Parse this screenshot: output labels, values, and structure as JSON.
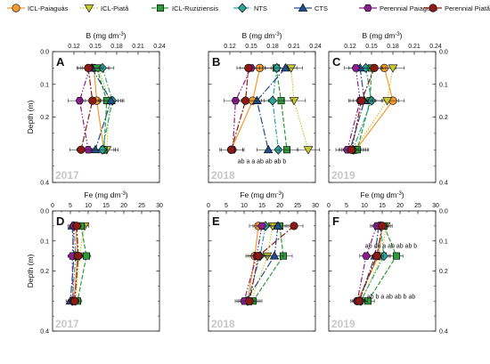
{
  "legend": [
    {
      "name": "ICL-Paiaguás",
      "color": "#f39a2b",
      "marker": "circle",
      "dash": ""
    },
    {
      "name": "ICL-Piatã",
      "color": "#c8c830",
      "marker": "triangle-down",
      "dash": "1.5,1.5"
    },
    {
      "name": "ICL-Ruziziensis",
      "color": "#2e9a3a",
      "marker": "square",
      "dash": "5,2"
    },
    {
      "name": "NTS",
      "color": "#2aa59a",
      "marker": "diamond",
      "dash": "6,2,1.5,2"
    },
    {
      "name": "CTS",
      "color": "#1f4e8c",
      "marker": "triangle-up",
      "dash": "8,2,1.5,2"
    },
    {
      "name": "Perennial Paiaguás",
      "color": "#8b1e8f",
      "marker": "hexagon",
      "dash": "6,2,1.5,2,1.5,2"
    },
    {
      "name": "Perennial Piatã",
      "color": "#8b1a14",
      "marker": "circle",
      "dash": "7,2,2,2"
    }
  ],
  "chart_data": [
    {
      "panel": "A",
      "year": "2017",
      "type": "scatter",
      "xlabel": "B (mg dm⁻³)",
      "xlabel_base": "B (mg dm",
      "xlabel_sup": "-3",
      "xlabel_end": ")",
      "ylabel": "Depth (m)",
      "xlim": [
        0.09,
        0.24
      ],
      "xticks": [
        "0.12",
        "0.15",
        "0.18",
        "0.21",
        "0.24"
      ],
      "ylim": [
        0,
        0.4
      ],
      "yticks": [
        "0.0",
        "0.1",
        "0.2",
        "0.4"
      ],
      "y": [
        0.05,
        0.15,
        0.3
      ],
      "series": [
        {
          "name": "ICL-Paiaguás",
          "x": [
            0.148,
            0.152,
            0.162
          ],
          "err": 0.016
        },
        {
          "name": "ICL-Piatã",
          "x": [
            0.154,
            0.17,
            0.166
          ],
          "err": 0.016
        },
        {
          "name": "ICL-Ruziziensis",
          "x": [
            0.152,
            0.166,
            0.162
          ],
          "err": 0.016
        },
        {
          "name": "NTS",
          "x": [
            0.16,
            0.174,
            0.16
          ],
          "err": 0.016
        },
        {
          "name": "CTS",
          "x": [
            0.145,
            0.172,
            0.15
          ],
          "err": 0.016
        },
        {
          "name": "Perennial Paiaguás",
          "x": [
            0.142,
            0.128,
            0.14
          ],
          "err": 0.016
        },
        {
          "name": "Perennial Piatã",
          "x": [
            0.14,
            0.146,
            0.13
          ],
          "err": 0.016
        }
      ],
      "annotations": []
    },
    {
      "panel": "B",
      "year": "2018",
      "type": "scatter",
      "xlabel": "B (mg dm⁻³)",
      "xlabel_base": "B (mg dm",
      "xlabel_sup": "-3",
      "xlabel_end": ")",
      "ylabel": "",
      "xlim": [
        0.09,
        0.24
      ],
      "xticks": [
        "0.12",
        "0.15",
        "0.18",
        "0.21",
        "0.24"
      ],
      "ylim": [
        0,
        0.4
      ],
      "yticks": [
        "0.0",
        "0.1",
        "0.2",
        "0.4"
      ],
      "y": [
        0.05,
        0.15,
        0.3
      ],
      "series": [
        {
          "name": "ICL-Paiaguás",
          "x": [
            0.162,
            0.152,
            0.122
          ],
          "err": 0.016
        },
        {
          "name": "ICL-Piatã",
          "x": [
            0.206,
            0.21,
            0.23
          ],
          "err": 0.016
        },
        {
          "name": "ICL-Ruziziensis",
          "x": [
            0.185,
            0.192,
            0.2
          ],
          "err": 0.016
        },
        {
          "name": "NTS",
          "x": [
            0.186,
            0.18,
            0.188
          ],
          "err": 0.016
        },
        {
          "name": "CTS",
          "x": [
            0.198,
            0.158,
            0.174
          ],
          "err": 0.016
        },
        {
          "name": "Perennial Paiaguás",
          "x": [
            0.15,
            0.128,
            0.124
          ],
          "err": 0.016
        },
        {
          "name": "Perennial Piatã",
          "x": [
            0.146,
            0.142,
            0.122
          ],
          "err": 0.016
        }
      ],
      "annotations": [
        {
          "text": "ab  a   a  ab ab ab b",
          "x": 0.165,
          "y": 0.335
        }
      ]
    },
    {
      "panel": "C",
      "year": "2019",
      "type": "scatter",
      "xlabel": "B (mg dm⁻³)",
      "xlabel_base": "B (mg dm",
      "xlabel_sup": "-3",
      "xlabel_end": ")",
      "ylabel": "",
      "xlim": [
        0.09,
        0.24
      ],
      "xticks": [
        "0.12",
        "0.15",
        "0.18",
        "0.21",
        "0.24"
      ],
      "ylim": [
        0,
        0.4
      ],
      "yticks": [
        "0.0",
        "0.1",
        "0.2",
        "0.4"
      ],
      "y": [
        0.05,
        0.15,
        0.3
      ],
      "series": [
        {
          "name": "ICL-Paiaguás",
          "x": [
            0.168,
            0.18,
            0.128
          ],
          "err": 0.016
        },
        {
          "name": "ICL-Piatã",
          "x": [
            0.18,
            0.172,
            0.126
          ],
          "err": 0.016
        },
        {
          "name": "ICL-Ruziziensis",
          "x": [
            0.15,
            0.148,
            0.13
          ],
          "err": 0.016
        },
        {
          "name": "NTS",
          "x": [
            0.142,
            0.15,
            0.124
          ],
          "err": 0.016
        },
        {
          "name": "CTS",
          "x": [
            0.134,
            0.14,
            0.12
          ],
          "err": 0.016
        },
        {
          "name": "Perennial Paiaguás",
          "x": [
            0.128,
            0.134,
            0.116
          ],
          "err": 0.016
        },
        {
          "name": "Perennial Piatã",
          "x": [
            0.154,
            0.136,
            0.122
          ],
          "err": 0.016
        }
      ],
      "annotations": []
    },
    {
      "panel": "D",
      "year": "2017",
      "type": "scatter",
      "xlabel": "Fe (mg dm⁻³)",
      "xlabel_base": "Fe (mg dm",
      "xlabel_sup": "-3",
      "xlabel_end": ")",
      "ylabel": "Depth (m)",
      "xlim": [
        0,
        30
      ],
      "xticks": [
        "0",
        "5",
        "10",
        "15",
        "20",
        "25",
        "30"
      ],
      "ylim": [
        0,
        0.4
      ],
      "yticks": [
        "0.0",
        "0.1",
        "0.2",
        "0.4"
      ],
      "y": [
        0.05,
        0.15,
        0.3
      ],
      "series": [
        {
          "name": "ICL-Paiaguás",
          "x": [
            6.5,
            7.0,
            6.0
          ],
          "err": 1.2
        },
        {
          "name": "ICL-Piatã",
          "x": [
            9.0,
            7.5,
            6.5
          ],
          "err": 1.2
        },
        {
          "name": "ICL-Ruziziensis",
          "x": [
            8.0,
            9.5,
            7.0
          ],
          "err": 1.2
        },
        {
          "name": "NTS",
          "x": [
            6.0,
            6.5,
            5.5
          ],
          "err": 1.2
        },
        {
          "name": "CTS",
          "x": [
            5.5,
            6.0,
            5.0
          ],
          "err": 1.2
        },
        {
          "name": "Perennial Paiaguás",
          "x": [
            6.0,
            5.5,
            5.8
          ],
          "err": 1.2
        },
        {
          "name": "Perennial Piatã",
          "x": [
            6.8,
            7.2,
            6.2
          ],
          "err": 1.2
        }
      ],
      "annotations": []
    },
    {
      "panel": "E",
      "year": "2018",
      "type": "scatter",
      "xlabel": "Fe (mg dm⁻³)",
      "xlabel_base": "Fe (mg dm",
      "xlabel_sup": "-3",
      "xlabel_end": ")",
      "ylabel": "",
      "xlim": [
        0,
        30
      ],
      "xticks": [
        "0",
        "5",
        "10",
        "15",
        "20",
        "25",
        "30"
      ],
      "ylim": [
        0,
        0.4
      ],
      "yticks": [
        "0.0",
        "0.1",
        "0.2",
        "0.4"
      ],
      "y": [
        0.05,
        0.15,
        0.3
      ],
      "series": [
        {
          "name": "ICL-Paiaguás",
          "x": [
            14.0,
            13.0,
            11.0
          ],
          "err": 2.5
        },
        {
          "name": "ICL-Piatã",
          "x": [
            18.0,
            16.5,
            12.0
          ],
          "err": 2.5
        },
        {
          "name": "ICL-Ruziziensis",
          "x": [
            20.0,
            21.0,
            12.5
          ],
          "err": 2.5
        },
        {
          "name": "NTS",
          "x": [
            16.0,
            14.5,
            11.0
          ],
          "err": 2.5
        },
        {
          "name": "CTS",
          "x": [
            19.5,
            18.5,
            10.5
          ],
          "err": 2.5
        },
        {
          "name": "Perennial Paiaguás",
          "x": [
            15.0,
            13.5,
            10.0
          ],
          "err": 2.5
        },
        {
          "name": "Perennial Piatã",
          "x": [
            24.0,
            14.0,
            11.5
          ],
          "err": 2.5
        }
      ],
      "annotations": []
    },
    {
      "panel": "F",
      "year": "2019",
      "type": "scatter",
      "xlabel": "Fe (mg dm⁻³)",
      "xlabel_base": "Fe (mg dm",
      "xlabel_sup": "-3",
      "xlabel_end": ")",
      "ylabel": "",
      "xlim": [
        0,
        30
      ],
      "xticks": [
        "0",
        "5",
        "10",
        "15",
        "20",
        "25",
        "30"
      ],
      "ylim": [
        0,
        0.4
      ],
      "yticks": [
        "0.0",
        "0.1",
        "0.2",
        "0.4"
      ],
      "y": [
        0.05,
        0.15,
        0.3
      ],
      "series": [
        {
          "name": "ICL-Paiaguás",
          "x": [
            15.0,
            14.0,
            8.0
          ],
          "err": 1.8
        },
        {
          "name": "ICL-Piatã",
          "x": [
            16.0,
            15.0,
            9.0
          ],
          "err": 1.8
        },
        {
          "name": "ICL-Ruziziensis",
          "x": [
            15.5,
            19.0,
            11.0
          ],
          "err": 1.8
        },
        {
          "name": "NTS",
          "x": [
            14.5,
            15.5,
            9.0
          ],
          "err": 1.8
        },
        {
          "name": "CTS",
          "x": [
            14.0,
            13.0,
            8.5
          ],
          "err": 1.8
        },
        {
          "name": "Perennial Paiaguás",
          "x": [
            13.5,
            10.5,
            8.0
          ],
          "err": 1.8
        },
        {
          "name": "Perennial Piatã",
          "x": [
            15.0,
            13.5,
            8.5
          ],
          "err": 1.8
        }
      ],
      "annotations": [
        {
          "text": "ab ab a ab ab ab b",
          "x": 17.5,
          "y": 0.115
        },
        {
          "text": "ab b a ab ab b ab",
          "x": 17.5,
          "y": 0.285
        }
      ]
    }
  ]
}
